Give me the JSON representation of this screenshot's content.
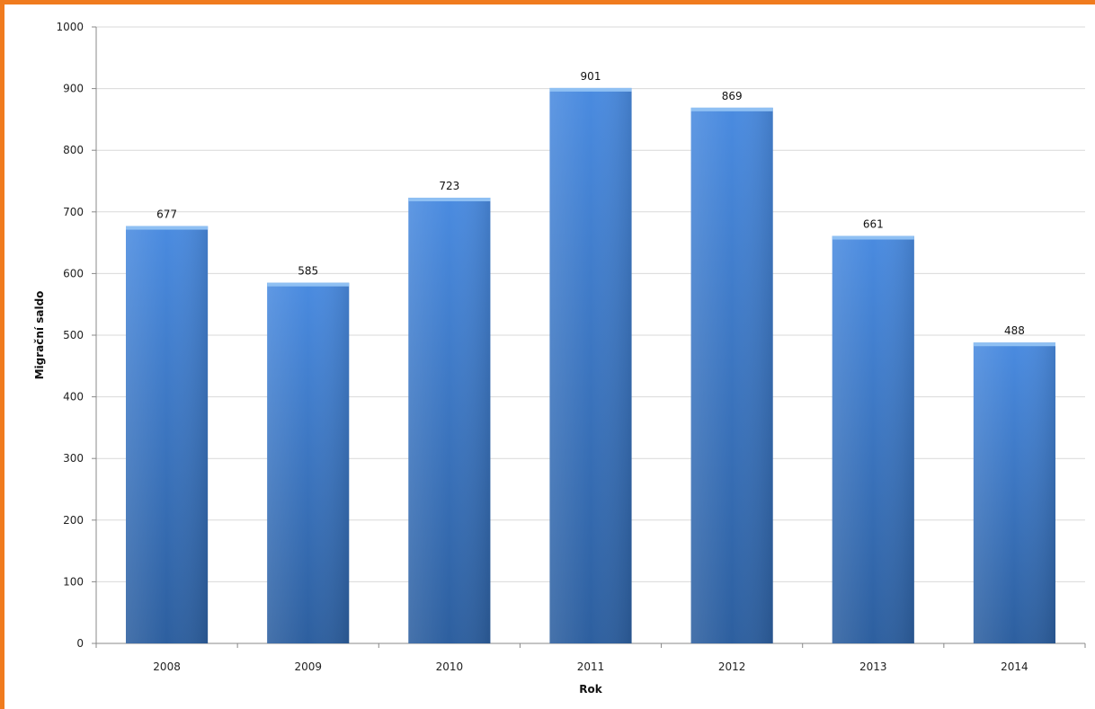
{
  "chart_data": {
    "type": "bar",
    "categories": [
      "2008",
      "2009",
      "2010",
      "2011",
      "2012",
      "2013",
      "2014"
    ],
    "values": [
      677,
      585,
      723,
      901,
      869,
      661,
      488
    ],
    "data_labels": [
      "677",
      "585",
      "723",
      "901",
      "869",
      "661",
      "488"
    ],
    "xlabel": "Rok",
    "ylabel": "Migrační saldo",
    "ylim": [
      0,
      1000
    ],
    "yticks": [
      0,
      100,
      200,
      300,
      400,
      500,
      600,
      700,
      800,
      900,
      1000
    ],
    "ytick_labels": [
      "0",
      "100",
      "200",
      "300",
      "400",
      "500",
      "600",
      "700",
      "800",
      "900",
      "1000"
    ],
    "grid": true,
    "legend": "none",
    "colors": {
      "bar_top": "#4a8be0",
      "bar_bottom": "#2d5f9f",
      "bar_cap": "#8fc0f3",
      "frame": "#f07b1e",
      "grid": "#d9d9d9"
    }
  }
}
